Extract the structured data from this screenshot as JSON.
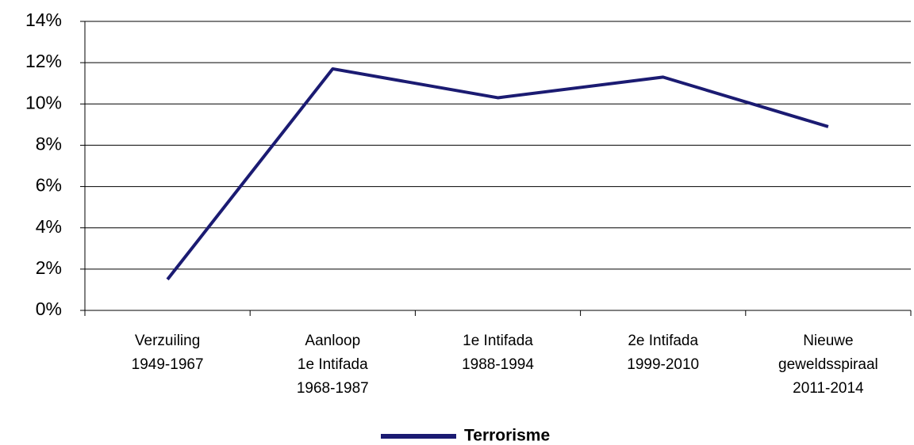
{
  "chart_data": {
    "type": "line",
    "categories": [
      "Verzuiling\n1949-1967",
      "Aanloop\n1e Intifada\n1968-1987",
      "1e Intifada\n1988-1994",
      "2e Intifada\n1999-2010",
      "Nieuwe\ngeweldsspiraal\n2011-2014"
    ],
    "series": [
      {
        "name": "Terrorisme",
        "color": "#1b1b72",
        "values": [
          1.5,
          11.7,
          10.3,
          11.3,
          8.9
        ]
      }
    ],
    "ylim": [
      0,
      14
    ],
    "yticks": [
      {
        "value": 0,
        "label": "0%"
      },
      {
        "value": 2,
        "label": "2%"
      },
      {
        "value": 4,
        "label": "4%"
      },
      {
        "value": 6,
        "label": "6%"
      },
      {
        "value": 8,
        "label": "8%"
      },
      {
        "value": 10,
        "label": "10%"
      },
      {
        "value": 12,
        "label": "12%"
      },
      {
        "value": 14,
        "label": "14%"
      }
    ],
    "grid": true,
    "legend": "bottom"
  }
}
